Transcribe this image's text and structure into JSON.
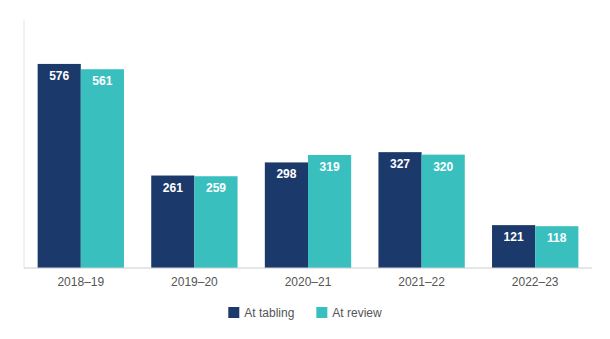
{
  "chart_data": {
    "type": "bar",
    "categories": [
      "2018–19",
      "2019–20",
      "2020–21",
      "2021–22",
      "2022–23"
    ],
    "series": [
      {
        "name": "At tabling",
        "color": "#1b3a6b",
        "values": [
          576,
          261,
          298,
          327,
          121
        ]
      },
      {
        "name": "At review",
        "color": "#3abfbf",
        "values": [
          561,
          259,
          319,
          320,
          118
        ]
      }
    ],
    "ylim": [
      0,
      700
    ],
    "grid": false,
    "legend": "bottom",
    "data_labels": true,
    "tick_labels": "x"
  }
}
